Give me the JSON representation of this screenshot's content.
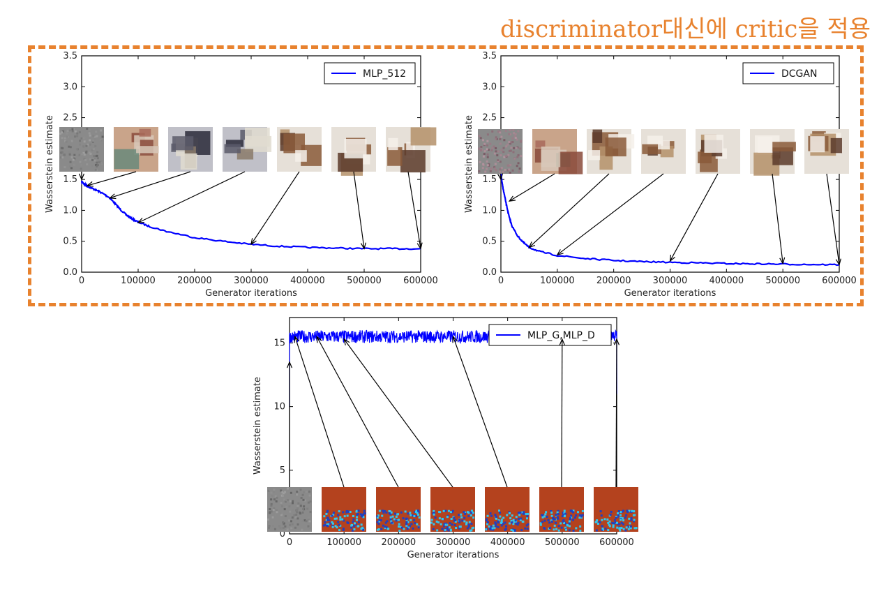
{
  "banner": "discriminator대신에 critic을 적용",
  "colors": {
    "accent": "#E8822E",
    "series": "#0000FF"
  },
  "chart_data": [
    {
      "type": "line",
      "legend": "MLP_512",
      "legend_position": "upper-right",
      "xlabel": "Generator iterations",
      "ylabel": "Wasserstein estimate",
      "xlim": [
        0,
        600000
      ],
      "ylim": [
        0,
        3.5
      ],
      "x_ticks": [
        "0",
        "100000",
        "200000",
        "300000",
        "400000",
        "500000",
        "600000"
      ],
      "y_ticks": [
        "0.0",
        "0.5",
        "1.0",
        "1.5",
        "2.0",
        "2.5",
        "3.0",
        "3.5"
      ],
      "series": [
        {
          "name": "MLP_512",
          "x": [
            0,
            5000,
            10000,
            20000,
            30000,
            40000,
            50000,
            60000,
            70000,
            80000,
            90000,
            100000,
            120000,
            150000,
            200000,
            250000,
            300000,
            350000,
            400000,
            450000,
            500000,
            550000,
            600000
          ],
          "y": [
            1.47,
            1.42,
            1.39,
            1.35,
            1.31,
            1.26,
            1.2,
            1.1,
            1.0,
            0.92,
            0.86,
            0.81,
            0.74,
            0.66,
            0.56,
            0.5,
            0.45,
            0.42,
            0.4,
            0.39,
            0.38,
            0.38,
            0.38
          ]
        }
      ],
      "thumbnails": [
        "noise",
        "blurry-room",
        "room",
        "room",
        "bedroom",
        "bedroom",
        "bedroom"
      ],
      "arrow_targets": [
        [
          0,
          1.5
        ],
        [
          10000,
          1.4
        ],
        [
          50000,
          1.2
        ],
        [
          100000,
          0.8
        ],
        [
          300000,
          0.45
        ],
        [
          500000,
          0.38
        ],
        [
          600000,
          0.38
        ]
      ]
    },
    {
      "type": "line",
      "legend": "DCGAN",
      "legend_position": "upper-right",
      "xlabel": "Generator iterations",
      "ylabel": "Wasserstein estimate",
      "xlim": [
        0,
        600000
      ],
      "ylim": [
        0,
        3.5
      ],
      "x_ticks": [
        "0",
        "100000",
        "200000",
        "300000",
        "400000",
        "500000",
        "600000"
      ],
      "y_ticks": [
        "0.0",
        "0.5",
        "1.0",
        "1.5",
        "2.0",
        "2.5",
        "3.0",
        "3.5"
      ],
      "series": [
        {
          "name": "DCGAN",
          "x": [
            0,
            2000,
            5000,
            10000,
            15000,
            20000,
            30000,
            40000,
            50000,
            70000,
            100000,
            150000,
            200000,
            250000,
            300000,
            350000,
            400000,
            450000,
            500000,
            550000,
            600000
          ],
          "y": [
            1.6,
            1.45,
            1.3,
            1.08,
            0.88,
            0.74,
            0.58,
            0.48,
            0.4,
            0.33,
            0.27,
            0.22,
            0.19,
            0.17,
            0.16,
            0.15,
            0.14,
            0.135,
            0.13,
            0.125,
            0.12
          ]
        }
      ],
      "thumbnails": [
        "noise",
        "blurry-room",
        "bedroom",
        "bedroom",
        "bedroom",
        "bedroom",
        "bedroom"
      ],
      "arrow_targets": [
        [
          0,
          1.5
        ],
        [
          15000,
          1.15
        ],
        [
          50000,
          0.4
        ],
        [
          100000,
          0.28
        ],
        [
          300000,
          0.18
        ],
        [
          500000,
          0.14
        ],
        [
          600000,
          0.12
        ]
      ]
    },
    {
      "type": "line",
      "legend": "MLP_G,MLP_D",
      "legend_position": "upper-right",
      "xlabel": "Generator iterations",
      "ylabel": "Wasserstein estimate",
      "xlim": [
        0,
        600000
      ],
      "ylim": [
        0,
        17
      ],
      "x_ticks": [
        "0",
        "100000",
        "200000",
        "300000",
        "400000",
        "500000",
        "600000"
      ],
      "y_ticks": [
        "0",
        "5",
        "10",
        "15"
      ],
      "series": [
        {
          "name": "MLP_G,MLP_D",
          "mean": 15.5,
          "noise_band": [
            15.0,
            16.0
          ]
        }
      ],
      "thumbnails": [
        "noise",
        "collapsed",
        "collapsed",
        "collapsed",
        "collapsed",
        "collapsed",
        "collapsed"
      ],
      "arrow_targets": [
        [
          0,
          13.5
        ],
        [
          10000,
          15.5
        ],
        [
          50000,
          15.5
        ],
        [
          100000,
          15.3
        ],
        [
          300000,
          15.5
        ],
        [
          500000,
          15.3
        ],
        [
          600000,
          15.3
        ]
      ]
    }
  ]
}
